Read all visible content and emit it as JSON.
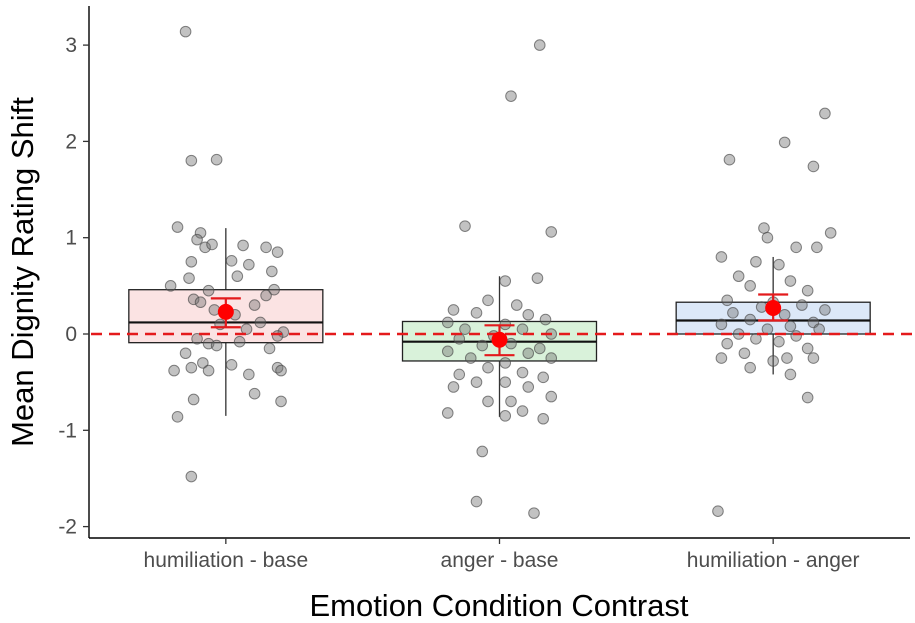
{
  "chart_data": {
    "type": "box",
    "title": "",
    "xlabel": "Emotion Condition Contrast",
    "ylabel": "Mean Dignity Rating Shift",
    "ylim": [
      -2.1,
      3.4
    ],
    "yticks": [
      -2,
      -1,
      0,
      1,
      2,
      3
    ],
    "ytick_labels": [
      "-2",
      "-1",
      "0",
      "1",
      "2",
      "3"
    ],
    "reference_line": {
      "y": 0,
      "style": "dashed",
      "color": "#e41a1c"
    },
    "grid": false,
    "legend": "none",
    "categories": [
      "humiliation - base",
      "anger - base",
      "humiliation - anger"
    ],
    "groups": [
      {
        "category": "humiliation - base",
        "box": {
          "q1": -0.09,
          "median": 0.12,
          "q3": 0.46,
          "whisker_low": -0.85,
          "whisker_high": 1.1
        },
        "mean": 0.23,
        "ci": [
          0.07,
          0.37
        ],
        "fill": "#fbe3e3",
        "points": [
          [
            -0.35,
            3.14
          ],
          [
            -0.3,
            1.8
          ],
          [
            -0.08,
            1.81
          ],
          [
            -0.42,
            1.11
          ],
          [
            -0.22,
            1.05
          ],
          [
            -0.25,
            0.98
          ],
          [
            -0.18,
            0.9
          ],
          [
            -0.12,
            0.93
          ],
          [
            0.15,
            0.92
          ],
          [
            0.35,
            0.9
          ],
          [
            0.45,
            0.85
          ],
          [
            -0.3,
            0.75
          ],
          [
            0.05,
            0.76
          ],
          [
            0.2,
            0.72
          ],
          [
            0.4,
            0.65
          ],
          [
            -0.32,
            0.58
          ],
          [
            0.1,
            0.6
          ],
          [
            -0.48,
            0.5
          ],
          [
            -0.15,
            0.45
          ],
          [
            0.42,
            0.46
          ],
          [
            0.35,
            0.4
          ],
          [
            -0.28,
            0.36
          ],
          [
            -0.22,
            0.33
          ],
          [
            0.25,
            0.3
          ],
          [
            -0.1,
            0.25
          ],
          [
            0.08,
            0.2
          ],
          [
            0.3,
            0.12
          ],
          [
            -0.05,
            0.1
          ],
          [
            0.18,
            0.05
          ],
          [
            0.5,
            0.02
          ],
          [
            0.45,
            -0.02
          ],
          [
            -0.25,
            -0.05
          ],
          [
            -0.15,
            -0.1
          ],
          [
            -0.08,
            -0.12
          ],
          [
            0.12,
            -0.08
          ],
          [
            -0.35,
            -0.2
          ],
          [
            0.38,
            -0.15
          ],
          [
            -0.2,
            -0.3
          ],
          [
            0.05,
            -0.32
          ],
          [
            0.45,
            -0.35
          ],
          [
            -0.45,
            -0.38
          ],
          [
            -0.3,
            -0.35
          ],
          [
            -0.15,
            -0.38
          ],
          [
            0.2,
            -0.42
          ],
          [
            0.48,
            -0.38
          ],
          [
            0.25,
            -0.62
          ],
          [
            -0.28,
            -0.68
          ],
          [
            0.48,
            -0.7
          ],
          [
            -0.42,
            -0.86
          ],
          [
            -0.3,
            -1.48
          ]
        ]
      },
      {
        "category": "anger - base",
        "box": {
          "q1": -0.28,
          "median": -0.08,
          "q3": 0.13,
          "whisker_low": -0.86,
          "whisker_high": 0.6
        },
        "mean": -0.06,
        "ci": [
          -0.22,
          0.09
        ],
        "fill": "#d9f2da",
        "points": [
          [
            0.35,
            3.0
          ],
          [
            0.1,
            2.47
          ],
          [
            -0.3,
            1.12
          ],
          [
            0.45,
            1.06
          ],
          [
            0.05,
            0.55
          ],
          [
            0.33,
            0.58
          ],
          [
            -0.1,
            0.35
          ],
          [
            0.15,
            0.3
          ],
          [
            -0.4,
            0.25
          ],
          [
            0.25,
            0.2
          ],
          [
            -0.2,
            0.22
          ],
          [
            0.4,
            0.15
          ],
          [
            -0.45,
            0.12
          ],
          [
            0.05,
            0.1
          ],
          [
            -0.3,
            0.05
          ],
          [
            0.2,
            0.05
          ],
          [
            0.45,
            0.0
          ],
          [
            -0.05,
            -0.02
          ],
          [
            -0.35,
            -0.05
          ],
          [
            0.1,
            -0.1
          ],
          [
            -0.15,
            -0.12
          ],
          [
            0.35,
            -0.15
          ],
          [
            -0.45,
            -0.18
          ],
          [
            0.25,
            -0.2
          ],
          [
            -0.25,
            -0.25
          ],
          [
            0.05,
            -0.3
          ],
          [
            0.45,
            -0.25
          ],
          [
            -0.1,
            -0.35
          ],
          [
            0.2,
            -0.4
          ],
          [
            -0.35,
            -0.42
          ],
          [
            0.38,
            -0.45
          ],
          [
            -0.2,
            -0.5
          ],
          [
            0.05,
            -0.5
          ],
          [
            0.25,
            -0.55
          ],
          [
            -0.4,
            -0.55
          ],
          [
            0.45,
            -0.65
          ],
          [
            0.1,
            -0.7
          ],
          [
            -0.1,
            -0.7
          ],
          [
            0.2,
            -0.8
          ],
          [
            -0.45,
            -0.82
          ],
          [
            0.38,
            -0.88
          ],
          [
            0.05,
            -0.85
          ],
          [
            -0.15,
            -1.22
          ],
          [
            -0.2,
            -1.74
          ],
          [
            0.3,
            -1.86
          ]
        ]
      },
      {
        "category": "humiliation - anger",
        "box": {
          "q1": 0.0,
          "median": 0.14,
          "q3": 0.33,
          "whisker_low": -0.42,
          "whisker_high": 0.8
        },
        "mean": 0.27,
        "ci": [
          0.14,
          0.41
        ],
        "fill": "#dce8f8",
        "points": [
          [
            0.45,
            2.29
          ],
          [
            0.1,
            1.99
          ],
          [
            0.35,
            1.74
          ],
          [
            -0.38,
            1.81
          ],
          [
            -0.08,
            1.1
          ],
          [
            0.5,
            1.05
          ],
          [
            -0.05,
            1.0
          ],
          [
            0.2,
            0.9
          ],
          [
            0.38,
            0.9
          ],
          [
            -0.45,
            0.8
          ],
          [
            -0.15,
            0.75
          ],
          [
            0.05,
            0.72
          ],
          [
            -0.3,
            0.6
          ],
          [
            0.15,
            0.55
          ],
          [
            -0.2,
            0.5
          ],
          [
            0.3,
            0.45
          ],
          [
            -0.4,
            0.35
          ],
          [
            0.0,
            0.33
          ],
          [
            0.25,
            0.3
          ],
          [
            -0.1,
            0.28
          ],
          [
            0.45,
            0.25
          ],
          [
            -0.35,
            0.22
          ],
          [
            0.1,
            0.2
          ],
          [
            -0.2,
            0.15
          ],
          [
            0.35,
            0.12
          ],
          [
            -0.45,
            0.1
          ],
          [
            0.15,
            0.08
          ],
          [
            -0.05,
            0.05
          ],
          [
            0.4,
            0.05
          ],
          [
            -0.3,
            0.0
          ],
          [
            0.2,
            -0.02
          ],
          [
            -0.15,
            -0.05
          ],
          [
            0.05,
            -0.08
          ],
          [
            -0.4,
            -0.1
          ],
          [
            0.3,
            -0.15
          ],
          [
            -0.25,
            -0.2
          ],
          [
            0.12,
            -0.25
          ],
          [
            0.35,
            -0.25
          ],
          [
            -0.45,
            -0.25
          ],
          [
            0.0,
            -0.28
          ],
          [
            -0.2,
            -0.35
          ],
          [
            0.15,
            -0.42
          ],
          [
            0.3,
            -0.66
          ],
          [
            -0.48,
            -1.84
          ]
        ]
      }
    ]
  }
}
